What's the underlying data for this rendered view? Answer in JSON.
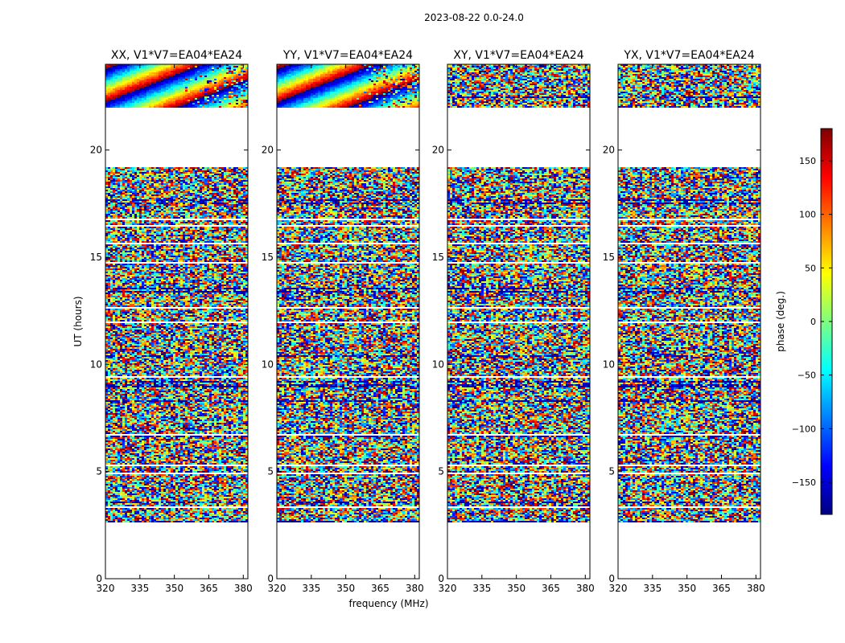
{
  "figure_title": "2023-08-22 0.0-24.0",
  "chart_data": {
    "type": "heatmap",
    "title": "2023-08-22 0.0-24.0",
    "xlabel": "frequency (MHz)",
    "ylabel": "UT (hours)",
    "xlim": [
      320,
      382
    ],
    "ylim": [
      0,
      24
    ],
    "xticks": [
      320,
      335,
      350,
      365,
      380
    ],
    "yticks": [
      0,
      5,
      10,
      15,
      20
    ],
    "colorbar": {
      "label": "phase (deg.)",
      "range": [
        -180,
        180
      ],
      "ticks": [
        -150,
        -100,
        -50,
        0,
        50,
        100,
        150
      ],
      "tick_labels": [
        "−150",
        "−100",
        "−50",
        "0",
        "50",
        "100",
        "150"
      ],
      "colormap": [
        "#00007f",
        "#0000ff",
        "#007fff",
        "#00ffff",
        "#7fff7f",
        "#ffff00",
        "#ff7f00",
        "#ff0000",
        "#7f0000"
      ]
    },
    "data_coverage_hours": [
      [
        2.6,
        19.2
      ],
      [
        22.0,
        24.0
      ]
    ],
    "panels": [
      {
        "title": "XX, V1*V7=EA04*EA24",
        "pattern": "coherent_phase_slope_after_22h"
      },
      {
        "title": "YY, V1*V7=EA04*EA24",
        "pattern": "coherent_phase_slope_after_22h"
      },
      {
        "title": "XY, V1*V7=EA04*EA24",
        "pattern": "noise"
      },
      {
        "title": "YX, V1*V7=EA04*EA24",
        "pattern": "noise"
      }
    ]
  }
}
